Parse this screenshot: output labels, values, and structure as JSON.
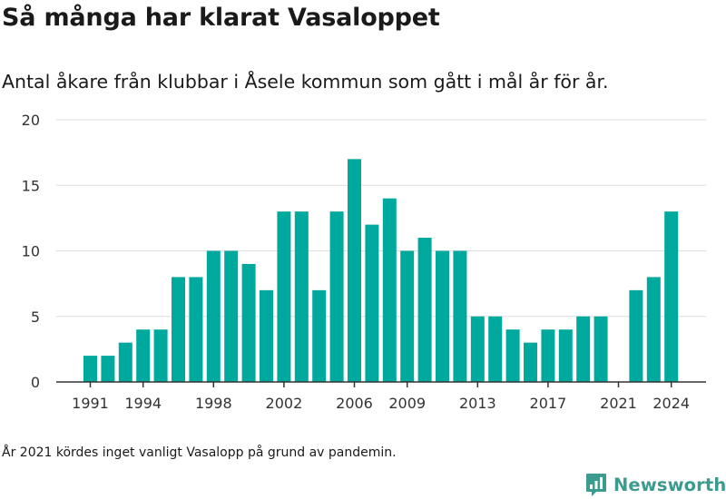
{
  "header": {
    "title": "Så många har klarat Vasaloppet",
    "subtitle": "Antal åkare från klubbar i Åsele kommun som gått i mål år för år."
  },
  "footer": {
    "note": "År 2021 kördes inget vanligt Vasalopp på grund av pandemin.",
    "brand": "Newsworthy"
  },
  "colors": {
    "bar": "#00a99d",
    "grid": "#dddddd",
    "axis": "#333333",
    "brand": "#3a9b8e"
  },
  "chart_data": {
    "type": "bar",
    "title": "",
    "xlabel": "",
    "ylabel": "",
    "ylim": [
      0,
      20
    ],
    "y_ticks": [
      0,
      5,
      10,
      15,
      20
    ],
    "x_tick_labels": [
      "1991",
      "1994",
      "1998",
      "2002",
      "2006",
      "2009",
      "2013",
      "2017",
      "2021",
      "2024"
    ],
    "grid": "horizontal",
    "categories": [
      "1991",
      "1992",
      "1993",
      "1994",
      "1995",
      "1996",
      "1997",
      "1998",
      "1999",
      "2000",
      "2001",
      "2002",
      "2003",
      "2004",
      "2005",
      "2006",
      "2007",
      "2008",
      "2009",
      "2010",
      "2011",
      "2012",
      "2013",
      "2014",
      "2015",
      "2016",
      "2017",
      "2018",
      "2019",
      "2020",
      "2021",
      "2022",
      "2023",
      "2024"
    ],
    "values": [
      2,
      2,
      3,
      4,
      4,
      8,
      8,
      10,
      10,
      9,
      7,
      13,
      13,
      7,
      13,
      17,
      12,
      14,
      10,
      11,
      10,
      10,
      5,
      5,
      4,
      3,
      4,
      4,
      5,
      5,
      0,
      7,
      8,
      13
    ]
  }
}
